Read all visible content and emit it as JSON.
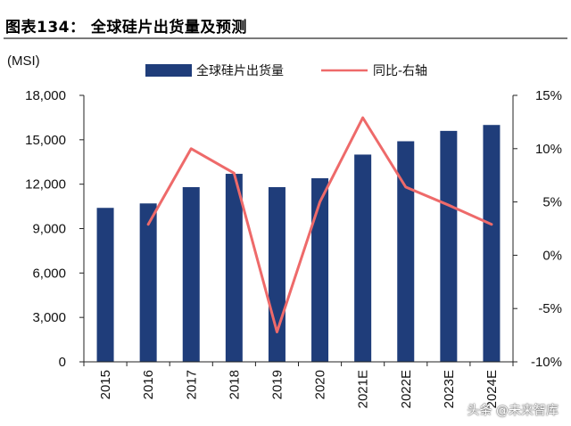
{
  "header": {
    "title": "图表134：  全球硅片出货量及预测"
  },
  "watermark": "头条 @未来智库",
  "chart_data": {
    "type": "bar",
    "title": "图表134：  全球硅片出货量及预测",
    "ylabel": "(MSI)",
    "categories": [
      "2015",
      "2016",
      "2017",
      "2018",
      "2019",
      "2020",
      "2021E",
      "2022E",
      "2023E",
      "2024E"
    ],
    "series": [
      {
        "name": "全球硅片出货量",
        "type": "bar",
        "axis": "left",
        "color": "#1f3d7a",
        "values": [
          10400,
          10700,
          11800,
          12700,
          11800,
          12400,
          14000,
          14900,
          15600,
          16000
        ]
      },
      {
        "name": "同比-右轴",
        "type": "line",
        "axis": "right",
        "color": "#ee6a6a",
        "values": [
          null,
          2.9,
          10.0,
          7.7,
          -7.2,
          5.0,
          12.9,
          6.4,
          4.7,
          2.9
        ]
      }
    ],
    "ylim": [
      0,
      18000
    ],
    "yticks": [
      0,
      3000,
      6000,
      9000,
      12000,
      15000,
      18000
    ],
    "ytick_labels": [
      "0",
      "3,000",
      "6,000",
      "9,000",
      "12,000",
      "15,000",
      "18,000"
    ],
    "y2lim": [
      -10,
      15
    ],
    "y2ticks": [
      -10,
      -5,
      0,
      5,
      10,
      15
    ],
    "y2tick_labels": [
      "-10%",
      "-5%",
      "0%",
      "5%",
      "10%",
      "15%"
    ],
    "grid": false,
    "legend_position": "top"
  }
}
